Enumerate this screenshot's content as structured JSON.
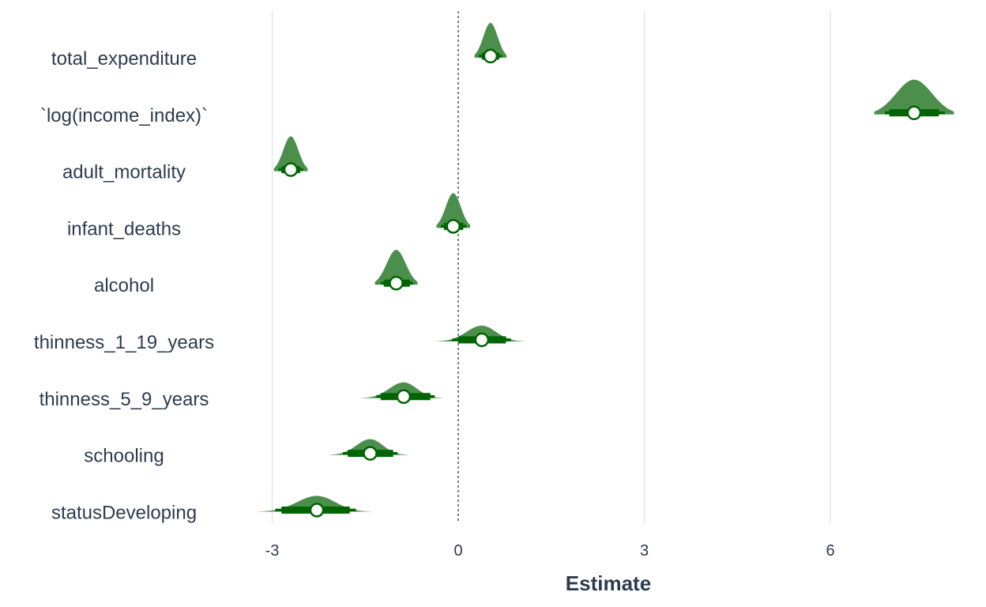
{
  "chart_data": {
    "type": "forest",
    "xlabel": "Estimate",
    "x_ticks": [
      -3,
      0,
      3,
      6
    ],
    "xlim": [
      -4.35,
      8.2
    ],
    "grid": "vertical-major",
    "reference_line": 0,
    "colors": {
      "density": "#4c8f4c",
      "interval": "#006400",
      "point_fill": "#ffffff",
      "point_stroke": "#006400",
      "grid": "#e3e3e3",
      "text": "#2e3b4e"
    },
    "terms": [
      {
        "name": "total_expenditure",
        "estimate": 0.52,
        "inner": [
          0.38,
          0.66
        ],
        "outer": [
          0.33,
          0.71
        ],
        "spread": 0.18,
        "skew": "up"
      },
      {
        "name": "`log(income_index)`",
        "estimate": 7.35,
        "inner": [
          6.95,
          7.75
        ],
        "outer": [
          6.88,
          7.85
        ],
        "spread": 0.45,
        "skew": "up"
      },
      {
        "name": "adult_mortality",
        "estimate": -2.7,
        "inner": [
          -2.85,
          -2.55
        ],
        "outer": [
          -2.9,
          -2.5
        ],
        "spread": 0.19,
        "skew": "up"
      },
      {
        "name": "infant_deaths",
        "estimate": -0.08,
        "inner": [
          -0.23,
          0.08
        ],
        "outer": [
          -0.28,
          0.13
        ],
        "spread": 0.19,
        "skew": "up"
      },
      {
        "name": "alcohol",
        "estimate": -1.0,
        "inner": [
          -1.2,
          -0.78
        ],
        "outer": [
          -1.25,
          -0.73
        ],
        "spread": 0.24,
        "skew": "up"
      },
      {
        "name": "thinness_1_19_years",
        "estimate": 0.38,
        "inner": [
          0.0,
          0.77
        ],
        "outer": [
          -0.1,
          0.85
        ],
        "spread": 0.48,
        "skew": "down"
      },
      {
        "name": "thinness_5_9_years",
        "estimate": -0.88,
        "inner": [
          -1.25,
          -0.45
        ],
        "outer": [
          -1.32,
          -0.38
        ],
        "spread": 0.45,
        "skew": "down"
      },
      {
        "name": "schooling",
        "estimate": -1.42,
        "inner": [
          -1.78,
          -1.05
        ],
        "outer": [
          -1.86,
          -0.98
        ],
        "spread": 0.43,
        "skew": "down"
      },
      {
        "name": "statusDeveloping",
        "estimate": -2.28,
        "inner": [
          -2.85,
          -1.75
        ],
        "outer": [
          -2.95,
          -1.65
        ],
        "spread": 0.62,
        "skew": "down"
      }
    ]
  }
}
